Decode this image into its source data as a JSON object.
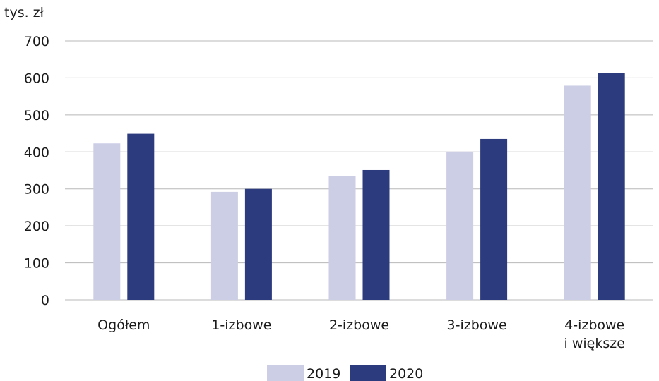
{
  "chart_data": {
    "type": "bar",
    "unit": "tys. zł",
    "categories": [
      [
        "Ogółem"
      ],
      [
        "1-izbowe"
      ],
      [
        "2-izbowe"
      ],
      [
        "3-izbowe"
      ],
      [
        "4-izbowe",
        "i większe"
      ]
    ],
    "series": [
      {
        "name": "2019",
        "color": "#ccceE6",
        "values": [
          423,
          292,
          335,
          401,
          579
        ]
      },
      {
        "name": "2020",
        "color": "#2c3a7e",
        "values": [
          449,
          300,
          351,
          435,
          614
        ]
      }
    ],
    "ylim": [
      0,
      700
    ],
    "yticks": [
      0,
      100,
      200,
      300,
      400,
      500,
      600,
      700
    ],
    "grid": true,
    "legend_position": "bottom-center"
  }
}
